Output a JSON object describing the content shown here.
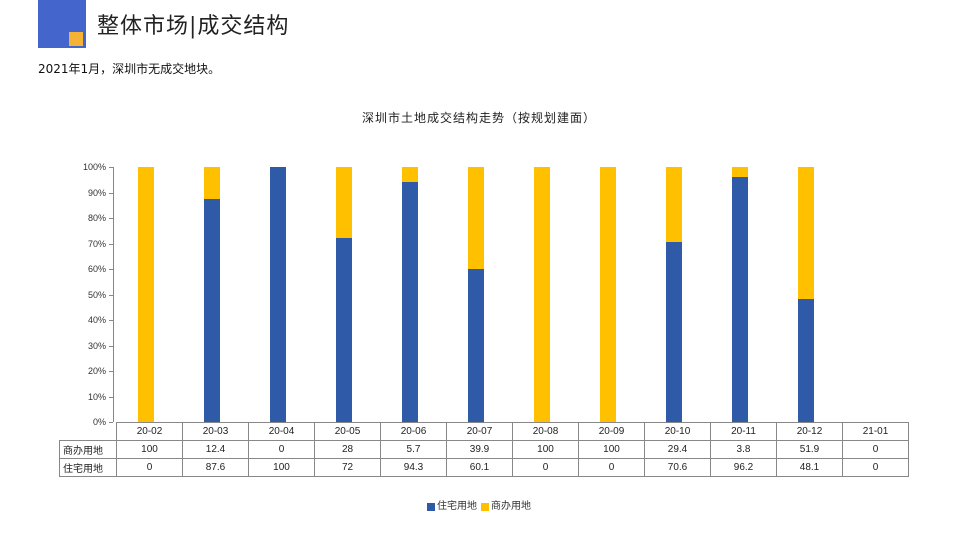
{
  "header": {
    "title": "整体市场|成交结构",
    "subtitle": "2021年1月，深圳市无成交地块。"
  },
  "colors": {
    "logo_blue": "#4466cc",
    "logo_orange": "#f5b335",
    "residential": "#2f5aa8",
    "commercial": "#ffc000"
  },
  "chart_data": {
    "type": "bar",
    "stacked": true,
    "percent": true,
    "title": "深圳市土地成交结构走势（按规划建面）",
    "xlabel": "",
    "ylabel": "",
    "ylim": [
      0,
      100
    ],
    "yticks": [
      "0%",
      "10%",
      "20%",
      "30%",
      "40%",
      "50%",
      "60%",
      "70%",
      "80%",
      "90%",
      "100%"
    ],
    "categories": [
      "20-02",
      "20-03",
      "20-04",
      "20-05",
      "20-06",
      "20-07",
      "20-08",
      "20-09",
      "20-10",
      "20-11",
      "20-12",
      "21-01"
    ],
    "series": [
      {
        "name": "住宅用地",
        "color": "#2f5aa8",
        "values": [
          0,
          87.6,
          100,
          72,
          94.3,
          60.1,
          0,
          0,
          70.6,
          96.2,
          48.1,
          0
        ]
      },
      {
        "name": "商办用地",
        "color": "#ffc000",
        "values": [
          100,
          12.4,
          0,
          28,
          5.7,
          39.9,
          100,
          100,
          29.4,
          3.8,
          51.9,
          0
        ]
      }
    ],
    "table": {
      "rows": [
        {
          "label": "商办用地",
          "values": [
            "100",
            "12.4",
            "0",
            "28",
            "5.7",
            "39.9",
            "100",
            "100",
            "29.4",
            "3.8",
            "51.9",
            "0"
          ]
        },
        {
          "label": "住宅用地",
          "values": [
            "0",
            "87.6",
            "100",
            "72",
            "94.3",
            "60.1",
            "0",
            "0",
            "70.6",
            "96.2",
            "48.1",
            "0"
          ]
        }
      ]
    },
    "legend": [
      "住宅用地",
      "商办用地"
    ],
    "legend_position": "bottom",
    "grid": false
  }
}
